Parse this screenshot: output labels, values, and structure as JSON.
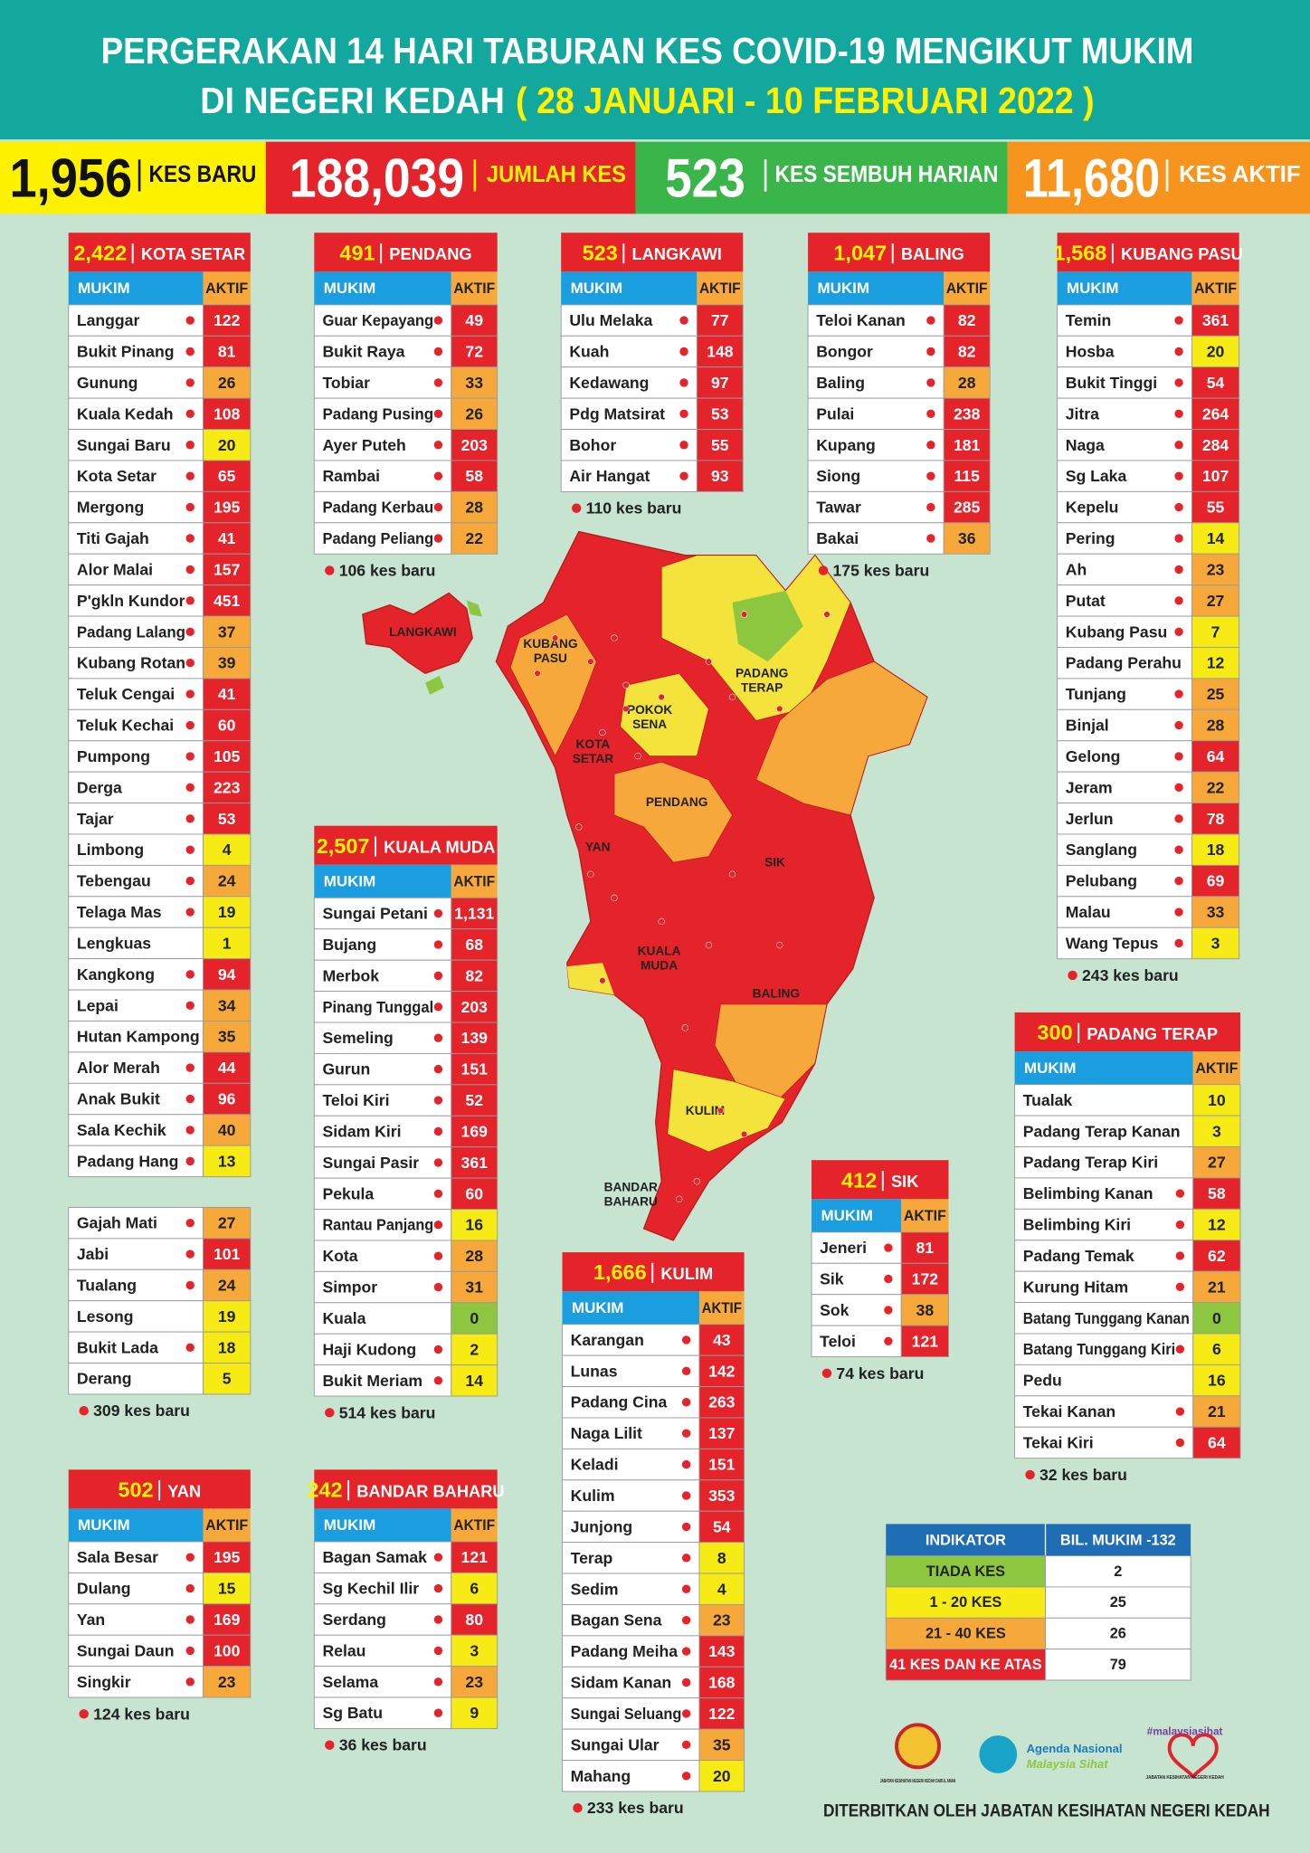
{
  "header": {
    "title_line1": "PERGERAKAN 14 HARI TABURAN KES COVID-19 MENGIKUT MUKIM",
    "title_line2_a": "DI NEGERI KEDAH",
    "title_line2_b": "( 28 JANUARI - 10 FEBRUARI 2022 )"
  },
  "stats": [
    {
      "value": "1,956",
      "label": "KES BARU"
    },
    {
      "value": "188,039",
      "label": "JUMLAH KES"
    },
    {
      "value": "523",
      "label": "KES SEMBUH HARIAN"
    },
    {
      "value": "11,680",
      "label": "KES AKTIF"
    }
  ],
  "columns": [
    "MUKIM",
    "AKTIF"
  ],
  "tables": [
    {
      "total": "2,422",
      "name": "KOTA SETAR",
      "rows": [
        [
          "Langgar",
          "122",
          true
        ],
        [
          "Bukit Pinang",
          "81",
          true
        ],
        [
          "Gunung",
          "26",
          true
        ],
        [
          "Kuala Kedah",
          "108",
          true
        ],
        [
          "Sungai Baru",
          "20",
          true
        ],
        [
          "Kota Setar",
          "65",
          true
        ],
        [
          "Mergong",
          "195",
          true
        ],
        [
          "Titi Gajah",
          "41",
          true
        ],
        [
          "Alor Malai",
          "157",
          true
        ],
        [
          "P'gkln Kundor",
          "451",
          true
        ],
        [
          "Padang Lalang",
          "37",
          true
        ],
        [
          "Kubang Rotan",
          "39",
          true
        ],
        [
          "Teluk Cengai",
          "41",
          true
        ],
        [
          "Teluk Kechai",
          "60",
          true
        ],
        [
          "Pumpong",
          "105",
          true
        ],
        [
          "Derga",
          "223",
          true
        ],
        [
          "Tajar",
          "53",
          true
        ],
        [
          "Limbong",
          "4",
          true
        ],
        [
          "Tebengau",
          "24",
          true
        ],
        [
          "Telaga Mas",
          "19",
          true
        ],
        [
          "Lengkuas",
          "1",
          false
        ],
        [
          "Kangkong",
          "94",
          true
        ],
        [
          "Lepai",
          "34",
          true
        ],
        [
          "Hutan Kampong",
          "35",
          false
        ],
        [
          "Alor Merah",
          "44",
          true
        ],
        [
          "Anak Bukit",
          "96",
          true
        ],
        [
          "Sala Kechik",
          "40",
          true
        ],
        [
          "Padang Hang",
          "13",
          true
        ]
      ]
    },
    {
      "rows": [
        [
          "Gajah Mati",
          "27",
          true
        ],
        [
          "Jabi",
          "101",
          true
        ],
        [
          "Tualang",
          "24",
          true
        ],
        [
          "Lesong",
          "19",
          false
        ],
        [
          "Bukit Lada",
          "18",
          true
        ],
        [
          "Derang",
          "5",
          false
        ]
      ],
      "note": "309 kes baru"
    },
    {
      "total": "491",
      "name": "PENDANG",
      "rows": [
        [
          "Guar Kepayang",
          "49",
          true
        ],
        [
          "Bukit Raya",
          "72",
          true
        ],
        [
          "Tobiar",
          "33",
          true
        ],
        [
          "Padang Pusing",
          "26",
          true
        ],
        [
          "Ayer Puteh",
          "203",
          true
        ],
        [
          "Rambai",
          "58",
          true
        ],
        [
          "Padang Kerbau",
          "28",
          true
        ],
        [
          "Padang Peliang",
          "22",
          true
        ]
      ],
      "note": "106 kes baru"
    },
    {
      "total": "523",
      "name": "LANGKAWI",
      "rows": [
        [
          "Ulu Melaka",
          "77",
          true
        ],
        [
          "Kuah",
          "148",
          true
        ],
        [
          "Kedawang",
          "97",
          true
        ],
        [
          "Pdg Matsirat",
          "53",
          true
        ],
        [
          "Bohor",
          "55",
          true
        ],
        [
          "Air Hangat",
          "93",
          true
        ]
      ],
      "note": "110 kes baru"
    },
    {
      "total": "1,047",
      "name": "BALING",
      "rows": [
        [
          "Teloi Kanan",
          "82",
          true
        ],
        [
          "Bongor",
          "82",
          true
        ],
        [
          "Baling",
          "28",
          true
        ],
        [
          "Pulai",
          "238",
          true
        ],
        [
          "Kupang",
          "181",
          true
        ],
        [
          "Siong",
          "115",
          true
        ],
        [
          "Tawar",
          "285",
          true
        ],
        [
          "Bakai",
          "36",
          true
        ]
      ],
      "note": "175 kes baru"
    },
    {
      "total": "1,568",
      "name": "KUBANG PASU",
      "rows": [
        [
          "Temin",
          "361",
          true
        ],
        [
          "Hosba",
          "20",
          true
        ],
        [
          "Bukit Tinggi",
          "54",
          true
        ],
        [
          "Jitra",
          "264",
          true
        ],
        [
          "Naga",
          "284",
          true
        ],
        [
          "Sg Laka",
          "107",
          true
        ],
        [
          "Kepelu",
          "55",
          true
        ],
        [
          "Pering",
          "14",
          true
        ],
        [
          "Ah",
          "23",
          true
        ],
        [
          "Putat",
          "27",
          true
        ],
        [
          "Kubang Pasu",
          "7",
          true
        ],
        [
          "Padang Perahu",
          "12",
          false
        ],
        [
          "Tunjang",
          "25",
          true
        ],
        [
          "Binjal",
          "28",
          true
        ],
        [
          "Gelong",
          "64",
          true
        ],
        [
          "Jeram",
          "22",
          true
        ],
        [
          "Jerlun",
          "78",
          true
        ],
        [
          "Sanglang",
          "18",
          true
        ],
        [
          "Pelubang",
          "69",
          true
        ],
        [
          "Malau",
          "33",
          true
        ],
        [
          "Wang Tepus",
          "3",
          true
        ]
      ],
      "note": "243 kes baru"
    },
    {
      "total": "2,507",
      "name": "KUALA MUDA",
      "rows": [
        [
          "Sungai Petani",
          "1,131",
          true
        ],
        [
          "Bujang",
          "68",
          true
        ],
        [
          "Merbok",
          "82",
          true
        ],
        [
          "Pinang Tunggal",
          "203",
          true
        ],
        [
          "Semeling",
          "139",
          true
        ],
        [
          "Gurun",
          "151",
          true
        ],
        [
          "Teloi Kiri",
          "52",
          true
        ],
        [
          "Sidam Kiri",
          "169",
          true
        ],
        [
          "Sungai Pasir",
          "361",
          true
        ],
        [
          "Pekula",
          "60",
          true
        ],
        [
          "Rantau Panjang",
          "16",
          true
        ],
        [
          "Kota",
          "28",
          true
        ],
        [
          "Simpor",
          "31",
          true
        ],
        [
          "Kuala",
          "0",
          false
        ],
        [
          "Haji Kudong",
          "2",
          true
        ],
        [
          "Bukit Meriam",
          "14",
          true
        ]
      ],
      "note": "514 kes baru"
    },
    {
      "total": "300",
      "name": "PADANG TERAP",
      "rows": [
        [
          "Tualak",
          "10",
          false
        ],
        [
          "Padang Terap Kanan",
          "3",
          false
        ],
        [
          "Padang Terap Kiri",
          "27",
          false
        ],
        [
          "Belimbing Kanan",
          "58",
          true
        ],
        [
          "Belimbing Kiri",
          "12",
          true
        ],
        [
          "Padang Temak",
          "62",
          true
        ],
        [
          "Kurung Hitam",
          "21",
          true
        ],
        [
          "Batang Tunggang Kanan",
          "0",
          false
        ],
        [
          "Batang Tunggang Kiri",
          "6",
          true
        ],
        [
          "Pedu",
          "16",
          false
        ],
        [
          "Tekai Kanan",
          "21",
          true
        ],
        [
          "Tekai Kiri",
          "64",
          true
        ]
      ],
      "note": "32 kes baru"
    },
    {
      "total": "412",
      "name": "SIK",
      "rows": [
        [
          "Jeneri",
          "81",
          true
        ],
        [
          "Sik",
          "172",
          true
        ],
        [
          "Sok",
          "38",
          true
        ],
        [
          "Teloi",
          "121",
          true
        ]
      ],
      "note": "74 kes baru"
    },
    {
      "total": "1,666",
      "name": "KULIM",
      "rows": [
        [
          "Karangan",
          "43",
          true
        ],
        [
          "Lunas",
          "142",
          true
        ],
        [
          "Padang Cina",
          "263",
          true
        ],
        [
          "Naga Lilit",
          "137",
          true
        ],
        [
          "Keladi",
          "151",
          true
        ],
        [
          "Kulim",
          "353",
          true
        ],
        [
          "Junjong",
          "54",
          true
        ],
        [
          "Terap",
          "8",
          true
        ],
        [
          "Sedim",
          "4",
          true
        ],
        [
          "Bagan Sena",
          "23",
          true
        ],
        [
          "Padang Meiha",
          "143",
          true
        ],
        [
          "Sidam Kanan",
          "168",
          true
        ],
        [
          "Sungai Seluang",
          "122",
          true
        ],
        [
          "Sungai Ular",
          "35",
          true
        ],
        [
          "Mahang",
          "20",
          true
        ]
      ],
      "note": "233 kes baru"
    },
    {
      "total": "502",
      "name": "YAN",
      "rows": [
        [
          "Sala Besar",
          "195",
          true
        ],
        [
          "Dulang",
          "15",
          true
        ],
        [
          "Yan",
          "169",
          true
        ],
        [
          "Sungai Daun",
          "100",
          true
        ],
        [
          "Singkir",
          "23",
          true
        ]
      ],
      "note": "124 kes baru"
    },
    {
      "total": "242",
      "name": "BANDAR BAHARU",
      "rows": [
        [
          "Bagan Samak",
          "121",
          true
        ],
        [
          "Sg Kechil Ilir",
          "6",
          true
        ],
        [
          "Serdang",
          "80",
          true
        ],
        [
          "Relau",
          "3",
          true
        ],
        [
          "Selama",
          "23",
          true
        ],
        [
          "Sg Batu",
          "9",
          true
        ]
      ],
      "note": "36 kes baru"
    }
  ],
  "map_labels": [
    [
      "LANGKAWI"
    ],
    [
      "KUBANG",
      "PASU"
    ],
    [
      "PADANG",
      "TERAP"
    ],
    [
      "POKOK",
      "SENA"
    ],
    [
      "KOTA",
      "SETAR"
    ],
    [
      "PENDANG"
    ],
    [
      "YAN"
    ],
    [
      "SIK"
    ],
    [
      "KUALA",
      "MUDA"
    ],
    [
      "BALING"
    ],
    [
      "KULIM"
    ],
    [
      "BANDAR",
      "BAHARU"
    ]
  ],
  "indicator": {
    "header": [
      "INDIKATOR",
      "BIL. MUKIM -132"
    ],
    "rows": [
      {
        "label": "TIADA KES",
        "count": "2",
        "range": [
          0,
          0
        ],
        "color": "#8dc63f"
      },
      {
        "label": "1 - 20 KES",
        "count": "25",
        "range": [
          1,
          20
        ],
        "color": "#f6eb14"
      },
      {
        "label": "21 - 40 KES",
        "count": "26",
        "range": [
          21,
          40
        ],
        "color": "#f7a83a"
      },
      {
        "label": "41 KES DAN KE ATAS",
        "count": "79",
        "range": [
          41,
          null
        ],
        "color": "#e5232a"
      }
    ]
  },
  "footer": {
    "publisher": "DITERBITKAN OLEH JABATAN KESIHATAN NEGERI KEDAH",
    "logo1": "JABATAN KESIHATAN NEGERI KEDAH DARUL AMAN",
    "logo2_a": "Agenda Nasional",
    "logo2_b": "Malaysia Sihat",
    "logo3": "#malaysiasihat",
    "logo3_sub": "JABATAN KESIHATAN NEGERI KEDAH"
  }
}
